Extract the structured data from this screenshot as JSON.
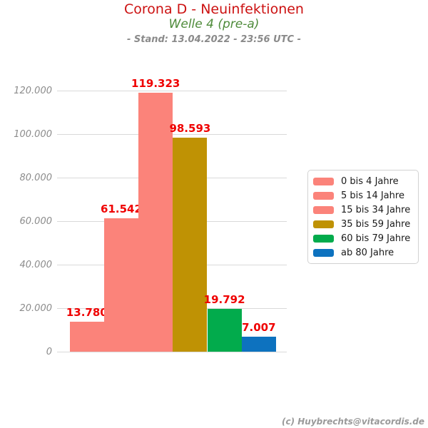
{
  "header": {
    "title": "Corona D - Neuinfektionen",
    "subtitle": "Welle 4 (pre-a)",
    "stand": "- Stand: 13.04.2022 - 23:56 UTC -"
  },
  "footer": {
    "credit": "(c) Huybrechts@vitacordis.de"
  },
  "colors": {
    "title": "#cc1111",
    "subtitle": "#4e8b3a",
    "stand_text": "#8a8a8a",
    "value_label": "#ef0000",
    "gridline": "#d9d9d9",
    "axis_tick_label": "#8c8c8c",
    "legend_border": "#d2d2d2",
    "salmon": "#fb837a",
    "gold": "#bf9204",
    "green": "#02ab4c",
    "blue": "#0d72bf"
  },
  "chart_data": {
    "type": "bar",
    "title": "Corona D - Neuinfektionen",
    "subtitle": "Welle 4 (pre-a)",
    "annotation": "- Stand: 13.04.2022 - 23:56 UTC -",
    "categories": [
      "0 bis 4 Jahre",
      "5 bis 14 Jahre",
      "15 bis 34 Jahre",
      "35 bis 59 Jahre",
      "60 bis 79 Jahre",
      "ab 80 Jahre"
    ],
    "values": [
      13780,
      61542,
      119323,
      98593,
      19792,
      7007
    ],
    "value_labels": [
      "13.780",
      "61.542",
      "119.323",
      "98.593",
      "19.792",
      "7.007"
    ],
    "bar_colors": [
      "#fb837a",
      "#fb837a",
      "#fb837a",
      "#bf9204",
      "#02ab4c",
      "#0d72bf"
    ],
    "xlabel": "",
    "ylabel": "",
    "ylim": [
      0,
      120000
    ],
    "ytick_values": [
      0,
      20000,
      40000,
      60000,
      80000,
      100000,
      120000
    ],
    "ytick_labels": [
      "0",
      "20.000",
      "40.000",
      "60.000",
      "80.000",
      "100.000",
      "120.000"
    ],
    "grid": true,
    "legend_position": "right"
  }
}
